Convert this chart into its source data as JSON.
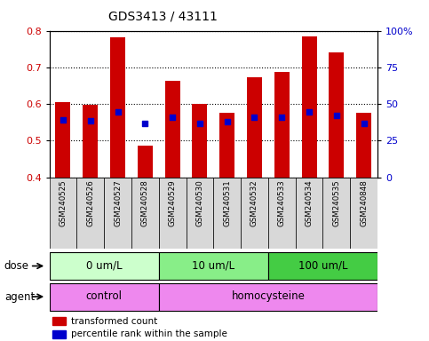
{
  "title": "GDS3413 / 43111",
  "samples": [
    "GSM240525",
    "GSM240526",
    "GSM240527",
    "GSM240528",
    "GSM240529",
    "GSM240530",
    "GSM240531",
    "GSM240532",
    "GSM240533",
    "GSM240534",
    "GSM240535",
    "GSM240848"
  ],
  "bar_values": [
    0.605,
    0.598,
    0.782,
    0.487,
    0.664,
    0.6,
    0.576,
    0.672,
    0.688,
    0.785,
    0.74,
    0.576
  ],
  "blue_dot_values": [
    0.557,
    0.555,
    0.578,
    0.547,
    0.565,
    0.548,
    0.553,
    0.564,
    0.565,
    0.578,
    0.568,
    0.548
  ],
  "bar_bottom": 0.4,
  "ylim": [
    0.4,
    0.8
  ],
  "yticks": [
    0.4,
    0.5,
    0.6,
    0.7,
    0.8
  ],
  "y2labels": [
    "0",
    "25",
    "50",
    "75",
    "100%"
  ],
  "y2positions": [
    0.4,
    0.5,
    0.6,
    0.7,
    0.8
  ],
  "bar_color": "#cc0000",
  "dot_color": "#0000cc",
  "dose_groups": [
    {
      "label": "0 um/L",
      "start": 0,
      "end": 3,
      "color": "#ccffcc"
    },
    {
      "label": "10 um/L",
      "start": 4,
      "end": 7,
      "color": "#88ee88"
    },
    {
      "label": "100 um/L",
      "start": 8,
      "end": 11,
      "color": "#44cc44"
    }
  ],
  "dose_label": "dose",
  "agent_label": "agent",
  "ctrl_label": "control",
  "hom_label": "homocysteine",
  "agent_color": "#ee88ee",
  "legend_bar_label": "transformed count",
  "legend_dot_label": "percentile rank within the sample",
  "background_color": "#ffffff",
  "tick_label_color_left": "#cc0000",
  "tick_label_color_right": "#0000cc",
  "xtick_bg_color": "#d8d8d8"
}
